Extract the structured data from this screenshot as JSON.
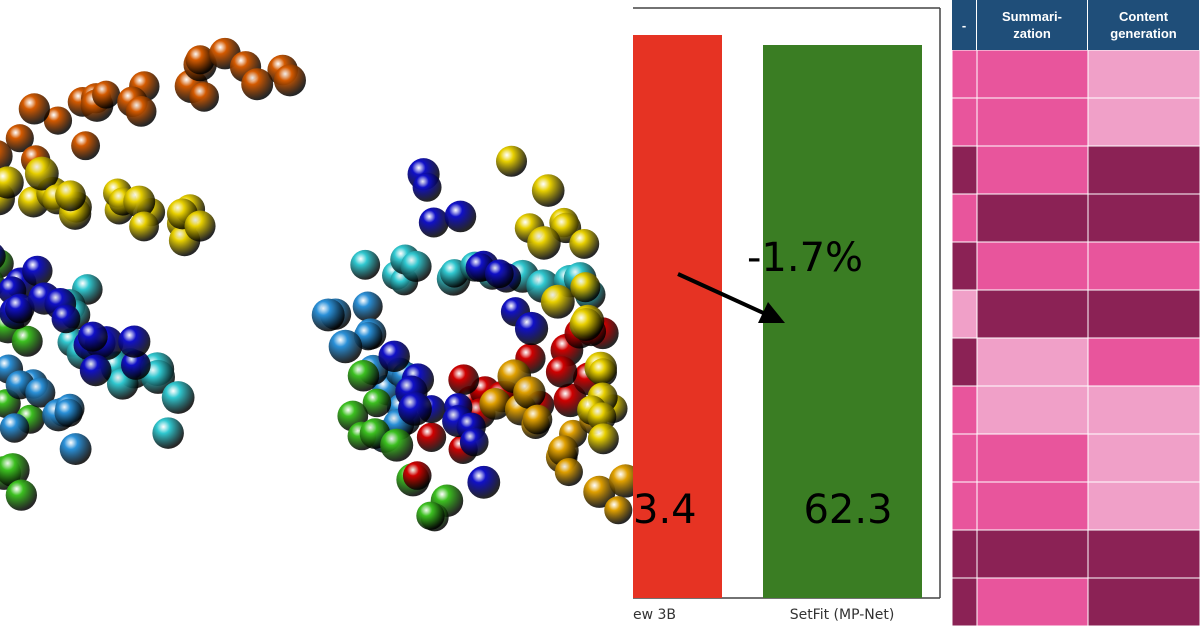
{
  "bar_panel": {
    "annotation": "-1.7%",
    "bars": [
      {
        "value_label": "3.4",
        "label": "ew 3B"
      },
      {
        "value_label": "62.3",
        "label": "SetFit (MP-Net)"
      }
    ]
  },
  "heatmap_panel": {
    "headers": [
      "-",
      "Summari-\nzation",
      "Content\ngeneration"
    ]
  }
}
